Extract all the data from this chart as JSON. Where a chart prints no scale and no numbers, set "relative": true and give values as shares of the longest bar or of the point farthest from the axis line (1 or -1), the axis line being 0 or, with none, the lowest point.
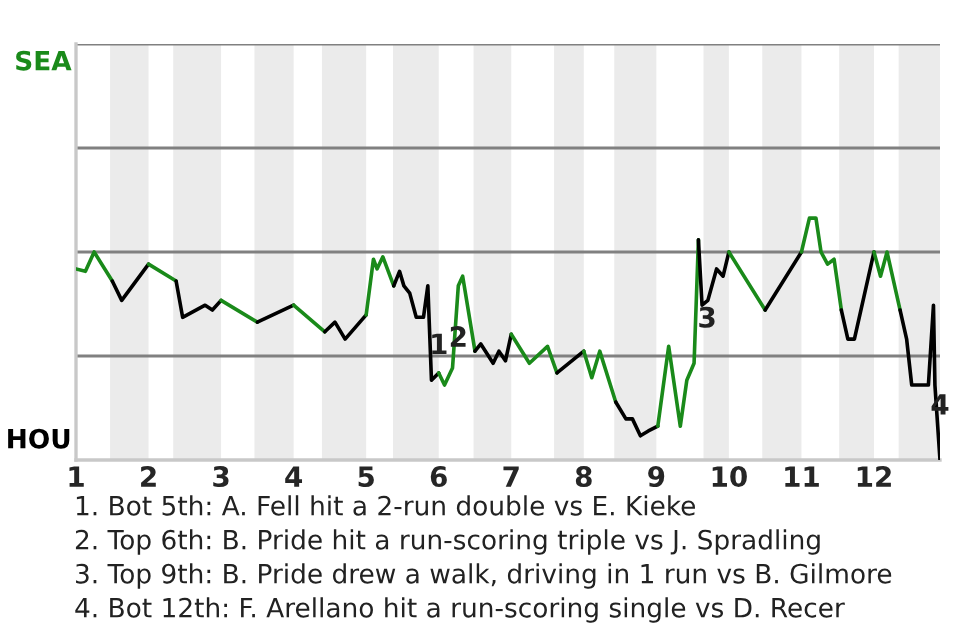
{
  "chart_data": {
    "type": "line",
    "relative": true,
    "marker": "none",
    "line_style": "solid",
    "xlim": [
      1,
      12.91
    ],
    "xticks": [
      1,
      2,
      3,
      4,
      5,
      6,
      7,
      8,
      9,
      10,
      11,
      12
    ],
    "ref_lines": [
      {
        "axis": "y",
        "value": 0.43,
        "color": "#808080"
      },
      {
        "axis": "y",
        "value": 0.86,
        "color": "#808080"
      },
      {
        "axis": "y",
        "value": 1.29,
        "color": "#808080"
      },
      {
        "axis": "y",
        "value": 1.72,
        "color": "#808080"
      }
    ],
    "bands": [
      {
        "axis": "x",
        "from": 1.47,
        "to": 2,
        "color": "#ebebeb"
      },
      {
        "axis": "x",
        "from": 2.34,
        "to": 3,
        "color": "#ebebeb"
      },
      {
        "axis": "x",
        "from": 3.46,
        "to": 4,
        "color": "#ebebeb"
      },
      {
        "axis": "x",
        "from": 4.39,
        "to": 5,
        "color": "#ebebeb"
      },
      {
        "axis": "x",
        "from": 5.37,
        "to": 6,
        "color": "#ebebeb"
      },
      {
        "axis": "x",
        "from": 6.48,
        "to": 7,
        "color": "#ebebeb"
      },
      {
        "axis": "x",
        "from": 7.59,
        "to": 8,
        "color": "#ebebeb"
      },
      {
        "axis": "x",
        "from": 8.42,
        "to": 9,
        "color": "#ebebeb"
      },
      {
        "axis": "x",
        "from": 9.65,
        "to": 10,
        "color": "#ebebeb"
      },
      {
        "axis": "x",
        "from": 10.46,
        "to": 11,
        "color": "#ebebeb"
      },
      {
        "axis": "x",
        "from": 11.52,
        "to": 12,
        "color": "#ebebeb"
      },
      {
        "axis": "x",
        "from": 12.34,
        "to": 12.91,
        "color": "#ebebeb"
      }
    ],
    "series": [
      {
        "color": "#1a8a1a",
        "x": [
          1,
          1.13,
          1.25,
          1.5
        ],
        "values": [
          0.79,
          0.78,
          0.86,
          0.74
        ]
      },
      {
        "color": "#000000",
        "x": [
          1.5,
          1.63,
          2
        ],
        "values": [
          0.74,
          0.66,
          0.81
        ]
      },
      {
        "color": "#1a8a1a",
        "x": [
          2,
          2.38
        ],
        "values": [
          0.81,
          0.74
        ]
      },
      {
        "color": "#000000",
        "x": [
          2.38,
          2.47,
          2.78,
          2.88,
          3
        ],
        "values": [
          0.74,
          0.59,
          0.64,
          0.62,
          0.66
        ]
      },
      {
        "color": "#1a8a1a",
        "x": [
          3,
          3.5
        ],
        "values": [
          0.66,
          0.57
        ]
      },
      {
        "color": "#000000",
        "x": [
          3.5,
          4
        ],
        "values": [
          0.57,
          0.64
        ]
      },
      {
        "color": "#1a8a1a",
        "x": [
          4,
          4.43
        ],
        "values": [
          0.64,
          0.53
        ]
      },
      {
        "color": "#000000",
        "x": [
          4.43,
          4.57,
          4.71,
          5
        ],
        "values": [
          0.53,
          0.57,
          0.5,
          0.6
        ]
      },
      {
        "color": "#1a8a1a",
        "x": [
          5,
          5.1,
          5.15,
          5.23,
          5.38
        ],
        "values": [
          0.6,
          0.83,
          0.79,
          0.84,
          0.72
        ]
      },
      {
        "color": "#000000",
        "x": [
          5.38,
          5.46,
          5.52,
          5.6,
          5.69,
          5.79,
          5.85,
          5.9,
          6
        ],
        "values": [
          0.72,
          0.78,
          0.72,
          0.69,
          0.59,
          0.59,
          0.72,
          0.33,
          0.36
        ]
      },
      {
        "color": "#1a8a1a",
        "x": [
          6,
          6.08,
          6.19,
          6.27,
          6.33,
          6.5
        ],
        "values": [
          0.36,
          0.31,
          0.38,
          0.72,
          0.76,
          0.45
        ]
      },
      {
        "color": "#000000",
        "x": [
          6.5,
          6.58,
          6.75,
          6.83,
          6.92,
          7
        ],
        "values": [
          0.45,
          0.48,
          0.4,
          0.45,
          0.41,
          0.52
        ]
      },
      {
        "color": "#1a8a1a",
        "x": [
          7,
          7.25,
          7.5,
          7.63
        ],
        "values": [
          0.52,
          0.4,
          0.47,
          0.36
        ]
      },
      {
        "color": "#000000",
        "x": [
          7.63,
          8
        ],
        "values": [
          0.36,
          0.45
        ]
      },
      {
        "color": "#1a8a1a",
        "x": [
          8,
          8.11,
          8.22,
          8.44
        ],
        "values": [
          0.45,
          0.34,
          0.45,
          0.24
        ]
      },
      {
        "color": "#000000",
        "x": [
          8.44,
          8.58,
          8.67,
          8.78,
          8.89,
          9.02
        ],
        "values": [
          0.24,
          0.17,
          0.17,
          0.1,
          0.12,
          0.14
        ]
      },
      {
        "color": "#1a8a1a",
        "x": [
          9.02,
          9.17,
          9.33,
          9.42,
          9.52,
          9.58
        ],
        "values": [
          0.14,
          0.47,
          0.14,
          0.33,
          0.4,
          0.91
        ]
      },
      {
        "color": "#000000",
        "x": [
          9.58,
          9.63,
          9.71,
          9.83,
          9.92,
          10
        ],
        "values": [
          0.91,
          0.64,
          0.66,
          0.79,
          0.76,
          0.86
        ]
      },
      {
        "color": "#1a8a1a",
        "x": [
          10,
          10.5
        ],
        "values": [
          0.86,
          0.62
        ]
      },
      {
        "color": "#000000",
        "x": [
          10.5,
          11
        ],
        "values": [
          0.62,
          0.86
        ]
      },
      {
        "color": "#1a8a1a",
        "x": [
          11,
          11.11,
          11.2,
          11.27,
          11.36,
          11.45,
          11.55
        ],
        "values": [
          0.86,
          1,
          1,
          0.86,
          0.81,
          0.83,
          0.62
        ]
      },
      {
        "color": "#000000",
        "x": [
          11.55,
          11.64,
          11.73,
          12
        ],
        "values": [
          0.62,
          0.5,
          0.5,
          0.86
        ]
      },
      {
        "color": "#1a8a1a",
        "x": [
          12,
          12.09,
          12.18,
          12.36
        ],
        "values": [
          0.86,
          0.76,
          0.86,
          0.62
        ]
      },
      {
        "color": "#000000",
        "x": [
          12.36,
          12.45,
          12.52,
          12.75,
          12.82,
          12.84,
          12.91
        ],
        "values": [
          0.62,
          0.5,
          0.31,
          0.31,
          0.64,
          0.31,
          0
        ]
      }
    ],
    "annotations": [
      {
        "text": "1",
        "x": 6,
        "y": 0.47
      },
      {
        "text": "2",
        "x": 6.27,
        "y": 0.5
      },
      {
        "text": "3",
        "x": 9.7,
        "y": 0.58
      },
      {
        "text": "4",
        "x": 12.91,
        "y": 0.22
      },
      "SEA",
      "HOU",
      "1. Bot 5th: A. Fell hit a 2-run double vs E. Kieke",
      "2. Top 6th: B. Pride hit a run-scoring triple vs J. Spradling",
      "3. Top 9th: B. Pride drew a walk, driving in 1 run vs B. Gilmore",
      "4. Bot 12th: F. Arellano hit a run-scoring single vs D. Recer"
    ]
  }
}
